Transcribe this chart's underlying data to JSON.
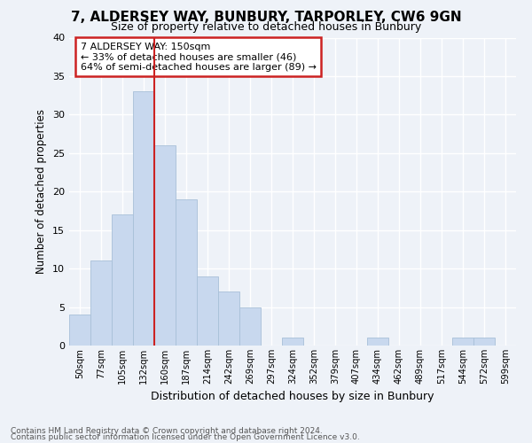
{
  "title1": "7, ALDERSEY WAY, BUNBURY, TARPORLEY, CW6 9GN",
  "title2": "Size of property relative to detached houses in Bunbury",
  "xlabel": "Distribution of detached houses by size in Bunbury",
  "ylabel": "Number of detached properties",
  "bar_color": "#c8d8ee",
  "bar_edge_color": "#a8c0d8",
  "categories": [
    "50sqm",
    "77sqm",
    "105sqm",
    "132sqm",
    "160sqm",
    "187sqm",
    "214sqm",
    "242sqm",
    "269sqm",
    "297sqm",
    "324sqm",
    "352sqm",
    "379sqm",
    "407sqm",
    "434sqm",
    "462sqm",
    "489sqm",
    "517sqm",
    "544sqm",
    "572sqm",
    "599sqm"
  ],
  "values": [
    4,
    11,
    17,
    33,
    26,
    19,
    9,
    7,
    5,
    0,
    1,
    0,
    0,
    0,
    1,
    0,
    0,
    0,
    1,
    1,
    0
  ],
  "ylim": [
    0,
    40
  ],
  "yticks": [
    0,
    5,
    10,
    15,
    20,
    25,
    30,
    35,
    40
  ],
  "vline_x": 4.0,
  "annotation_title": "7 ALDERSEY WAY: 150sqm",
  "annotation_line1": "← 33% of detached houses are smaller (46)",
  "annotation_line2": "64% of semi-detached houses are larger (89) →",
  "footer1": "Contains HM Land Registry data © Crown copyright and database right 2024.",
  "footer2": "Contains public sector information licensed under the Open Government Licence v3.0.",
  "background_color": "#eef2f8",
  "grid_color": "#ffffff",
  "annotation_box_color": "#ffffff",
  "annotation_box_edge": "#cc2222",
  "vline_color": "#cc2222",
  "title_color": "#000000",
  "footer_color": "#555555"
}
